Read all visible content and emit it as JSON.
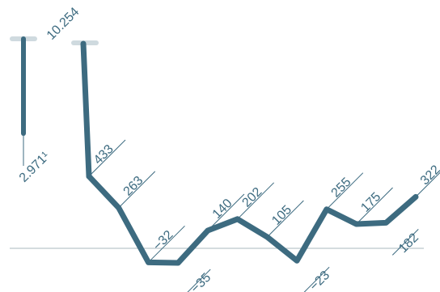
{
  "chart_data": {
    "type": "line",
    "range": {
      "values": [
        10254,
        2971
      ],
      "value_labels": [
        "10.254",
        "2.971¹"
      ]
    },
    "series": [
      {
        "color": "#3d6b80",
        "values": [
          433,
          263,
          -32,
          -35,
          140,
          202,
          105,
          -23,
          255,
          175,
          182,
          322
        ],
        "value_labels": [
          "433",
          "263",
          "−32",
          "−35",
          "140",
          "202",
          "105",
          "−23",
          "255",
          "175",
          "182",
          "322"
        ]
      }
    ]
  }
}
